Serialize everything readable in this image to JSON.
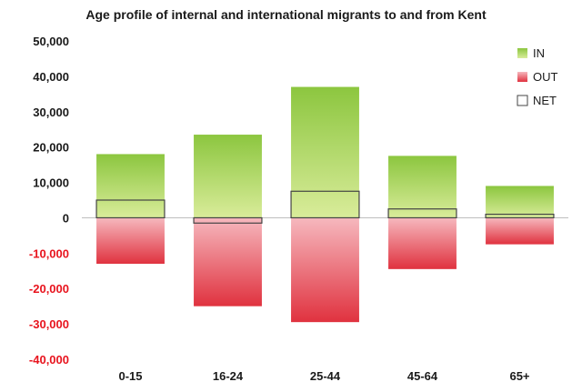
{
  "chart_data": {
    "type": "bar",
    "title": "Age profile of internal and international migrants to and from Kent",
    "xlabel": "",
    "ylabel": "",
    "categories": [
      "0-15",
      "16-24",
      "25-44",
      "45-64",
      "65+"
    ],
    "series": [
      {
        "name": "IN",
        "values": [
          18000,
          23500,
          37000,
          17500,
          9000
        ]
      },
      {
        "name": "OUT",
        "values": [
          -13000,
          -25000,
          -29500,
          -14500,
          -7500
        ]
      },
      {
        "name": "NET",
        "values": [
          5000,
          -1500,
          7500,
          2500,
          1000
        ]
      }
    ],
    "ylim": [
      -40000,
      50000
    ],
    "yticks": [
      "50,000",
      "40,000",
      "30,000",
      "20,000",
      "10,000",
      "0",
      "-10,000",
      "-20,000",
      "-30,000",
      "-40,000"
    ],
    "ytick_values": [
      50000,
      40000,
      30000,
      20000,
      10000,
      0,
      -10000,
      -20000,
      -30000,
      -40000
    ],
    "negative_tick_color": "#e8141e",
    "positive_tick_color": "#1a1a1a",
    "in_color_light": "#d9ec9a",
    "in_color_dark": "#8cc63f",
    "out_color_light": "#f6b8be",
    "out_color_dark": "#e0323f",
    "net_stroke": "#444444",
    "legend_position": "top-right",
    "grid": false
  }
}
